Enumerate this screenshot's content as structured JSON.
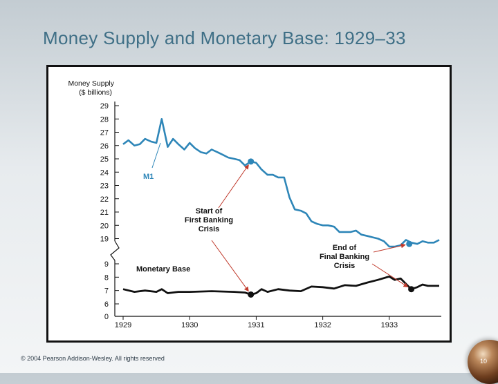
{
  "slide": {
    "title": "Money Supply and Monetary Base: 1929–33",
    "copyright": "© 2004 Pearson Addison-Wesley. All rights reserved",
    "page_number": "10"
  },
  "colors": {
    "m1_line": "#2e86b8",
    "base_line": "#111111",
    "axis": "#111111",
    "annotation_arrow": "#c0392b"
  },
  "chart_data": {
    "type": "line",
    "ylabel": [
      "Money Supply",
      "($ billions)"
    ],
    "x_ticks": [
      "1929",
      "1930",
      "1931",
      "1932",
      "1933"
    ],
    "xlim": [
      1929.0,
      1933.75
    ],
    "y_upper_ticks": [
      "29",
      "28",
      "27",
      "26",
      "25",
      "24",
      "23",
      "22",
      "21",
      "20",
      "19"
    ],
    "y_lower_ticks": [
      "9",
      "8",
      "7",
      "6",
      "0"
    ],
    "axis_break": {
      "lower_range": [
        6,
        9
      ],
      "upper_range": [
        19,
        29
      ]
    },
    "series": [
      {
        "name": "M1",
        "label": "M1",
        "x": [
          1929.0,
          1929.08,
          1929.17,
          1929.25,
          1929.33,
          1929.42,
          1929.5,
          1929.58,
          1929.67,
          1929.75,
          1929.83,
          1929.92,
          1930.0,
          1930.08,
          1930.17,
          1930.25,
          1930.33,
          1930.42,
          1930.5,
          1930.58,
          1930.67,
          1930.75,
          1930.83,
          1930.92,
          1931.0,
          1931.08,
          1931.17,
          1931.25,
          1931.33,
          1931.42,
          1931.5,
          1931.58,
          1931.67,
          1931.75,
          1931.83,
          1931.92,
          1932.0,
          1932.08,
          1932.17,
          1932.25,
          1932.33,
          1932.42,
          1932.5,
          1932.58,
          1932.67,
          1932.75,
          1932.83,
          1932.92,
          1933.0,
          1933.08,
          1933.17,
          1933.25,
          1933.33,
          1933.42,
          1933.5,
          1933.58,
          1933.67,
          1933.75
        ],
        "values": [
          26.1,
          26.4,
          26.0,
          26.1,
          26.5,
          26.3,
          26.2,
          28.0,
          25.9,
          26.5,
          26.1,
          25.7,
          26.2,
          25.8,
          25.5,
          25.4,
          25.7,
          25.5,
          25.3,
          25.1,
          25.0,
          24.9,
          24.5,
          24.8,
          24.7,
          24.2,
          23.8,
          23.8,
          23.6,
          23.6,
          22.1,
          21.2,
          21.1,
          20.9,
          20.3,
          20.1,
          20.0,
          20.0,
          19.9,
          19.5,
          19.5,
          19.5,
          19.6,
          19.3,
          19.2,
          19.1,
          19.0,
          18.8,
          18.4,
          18.4,
          18.5,
          18.9,
          18.7,
          18.6,
          18.8,
          18.7,
          18.7,
          18.9
        ]
      },
      {
        "name": "Monetary Base",
        "label": "Monetary Base",
        "x": [
          1929.0,
          1929.17,
          1929.33,
          1929.5,
          1929.58,
          1929.67,
          1929.83,
          1930.0,
          1930.33,
          1930.67,
          1930.83,
          1930.92,
          1931.0,
          1931.08,
          1931.17,
          1931.33,
          1931.5,
          1931.67,
          1931.83,
          1932.0,
          1932.17,
          1932.33,
          1932.5,
          1932.67,
          1932.83,
          1933.0,
          1933.08,
          1933.17,
          1933.25,
          1933.33,
          1933.42,
          1933.5,
          1933.58,
          1933.75
        ],
        "values": [
          7.1,
          6.9,
          7.0,
          6.9,
          7.1,
          6.8,
          6.9,
          6.9,
          6.95,
          6.9,
          6.85,
          6.7,
          6.8,
          7.1,
          6.9,
          7.1,
          7.0,
          6.95,
          7.3,
          7.25,
          7.15,
          7.4,
          7.35,
          7.6,
          7.8,
          8.05,
          7.8,
          7.9,
          7.5,
          7.1,
          7.25,
          7.45,
          7.35,
          7.35
        ]
      }
    ],
    "annotations": [
      {
        "name": "start-of-first-banking-crisis",
        "lines": [
          "Start of",
          "First Banking",
          "Crisis"
        ],
        "points": [
          {
            "series": "M1",
            "x": 1930.92,
            "y": 24.8
          },
          {
            "series": "Monetary Base",
            "x": 1930.92,
            "y": 6.7
          }
        ]
      },
      {
        "name": "end-of-final-banking-crisis",
        "lines": [
          "End of",
          "Final Banking",
          "Crisis"
        ],
        "points": [
          {
            "series": "M1",
            "x": 1933.3,
            "y": 18.6
          },
          {
            "series": "Monetary Base",
            "x": 1933.33,
            "y": 7.1
          }
        ]
      }
    ]
  }
}
